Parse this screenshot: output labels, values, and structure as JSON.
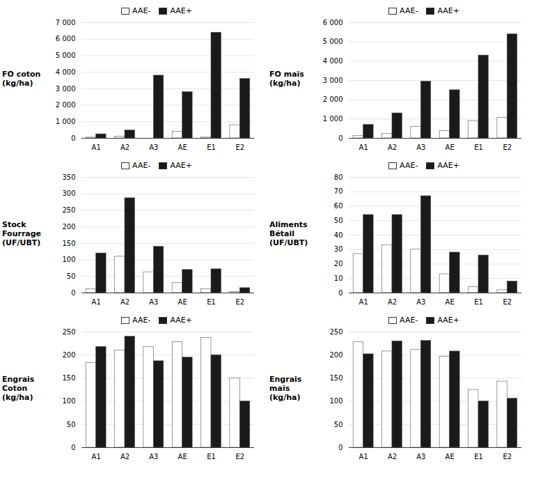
{
  "chart_data": [
    {
      "type": "bar",
      "ylabel": "FO coton\n(kg/ha)",
      "categories": [
        "A1",
        "A2",
        "A3",
        "AE",
        "E1",
        "E2"
      ],
      "series": [
        {
          "name": "AAE-",
          "color": "#ffffff",
          "values": [
            50,
            100,
            0,
            400,
            50,
            800
          ]
        },
        {
          "name": "AAE+",
          "color": "#1a1a1a",
          "values": [
            250,
            480,
            3800,
            2800,
            6400,
            3600
          ]
        }
      ],
      "ylim": [
        0,
        7000
      ],
      "yticks": [
        0,
        {
          "value": 1000,
          "label": "1 000"
        },
        {
          "value": 2000,
          "label": "2 000"
        },
        {
          "value": 3000,
          "label": "3 000"
        },
        {
          "value": 4000,
          "label": "4 000"
        },
        {
          "value": 5000,
          "label": "5 000"
        },
        {
          "value": 6000,
          "label": "6 000"
        },
        {
          "value": 7000,
          "label": "7 000"
        }
      ],
      "grid": true,
      "legend": "top"
    },
    {
      "type": "bar",
      "ylabel": "FO maïs\n(kg/ha)",
      "categories": [
        "A1",
        "A2",
        "A3",
        "AE",
        "E1",
        "E2"
      ],
      "series": [
        {
          "name": "AAE-",
          "color": "#ffffff",
          "values": [
            130,
            230,
            600,
            380,
            900,
            1060
          ]
        },
        {
          "name": "AAE+",
          "color": "#1a1a1a",
          "values": [
            700,
            1300,
            2950,
            2500,
            4300,
            5400
          ]
        }
      ],
      "ylim": [
        0,
        6000
      ],
      "yticks": [
        0,
        {
          "value": 1000,
          "label": "1 000"
        },
        {
          "value": 2000,
          "label": "2 000"
        },
        {
          "value": 3000,
          "label": "3 000"
        },
        {
          "value": 4000,
          "label": "4 000"
        },
        {
          "value": 5000,
          "label": "5 000"
        },
        {
          "value": 6000,
          "label": "6 000"
        }
      ],
      "grid": true,
      "legend": "top"
    },
    {
      "type": "bar",
      "ylabel": "Stock\nFourrage\n(UF/UBT)",
      "categories": [
        "A1",
        "A2",
        "A3",
        "AE",
        "E1",
        "E2"
      ],
      "series": [
        {
          "name": "AAE-",
          "color": "#ffffff",
          "values": [
            12,
            110,
            63,
            30,
            12,
            3
          ]
        },
        {
          "name": "AAE+",
          "color": "#1a1a1a",
          "values": [
            120,
            287,
            140,
            70,
            72,
            15
          ]
        }
      ],
      "ylim": [
        0,
        350
      ],
      "yticks": [
        0,
        50,
        100,
        150,
        200,
        250,
        300,
        350
      ],
      "grid": true,
      "legend": "top"
    },
    {
      "type": "bar",
      "ylabel": "Aliments\nBétail\n(UF/UBT)",
      "categories": [
        "A1",
        "A2",
        "A3",
        "AE",
        "E1",
        "E2"
      ],
      "series": [
        {
          "name": "AAE-",
          "color": "#ffffff",
          "values": [
            27,
            33,
            30,
            13,
            4,
            2
          ]
        },
        {
          "name": "AAE+",
          "color": "#1a1a1a",
          "values": [
            54,
            54,
            67,
            28,
            26,
            8
          ]
        }
      ],
      "ylim": [
        0,
        80
      ],
      "yticks": [
        0,
        10,
        20,
        30,
        40,
        50,
        60,
        70,
        80
      ],
      "grid": true,
      "legend": "top"
    },
    {
      "type": "bar",
      "ylabel": "Engrais\nCoton\n(kg/ha)",
      "categories": [
        "A1",
        "A2",
        "A3",
        "AE",
        "E1",
        "E2"
      ],
      "series": [
        {
          "name": "AAE-",
          "color": "#ffffff",
          "values": [
            183,
            210,
            218,
            228,
            237,
            150
          ]
        },
        {
          "name": "AAE+",
          "color": "#1a1a1a",
          "values": [
            218,
            240,
            187,
            195,
            200,
            100
          ]
        }
      ],
      "ylim": [
        0,
        250
      ],
      "yticks": [
        0,
        50,
        100,
        150,
        200,
        250
      ],
      "grid": true,
      "legend": "top"
    },
    {
      "type": "bar",
      "ylabel": "Engrais\nmaïs\n(kg/ha)",
      "categories": [
        "A1",
        "A2",
        "A3",
        "AE",
        "E1",
        "E2"
      ],
      "series": [
        {
          "name": "AAE-",
          "color": "#ffffff",
          "values": [
            228,
            208,
            212,
            197,
            125,
            143
          ]
        },
        {
          "name": "AAE+",
          "color": "#1a1a1a",
          "values": [
            202,
            230,
            231,
            208,
            100,
            106
          ]
        }
      ],
      "ylim": [
        0,
        250
      ],
      "yticks": [
        0,
        50,
        100,
        150,
        200,
        250
      ],
      "grid": true,
      "legend": "top"
    }
  ]
}
